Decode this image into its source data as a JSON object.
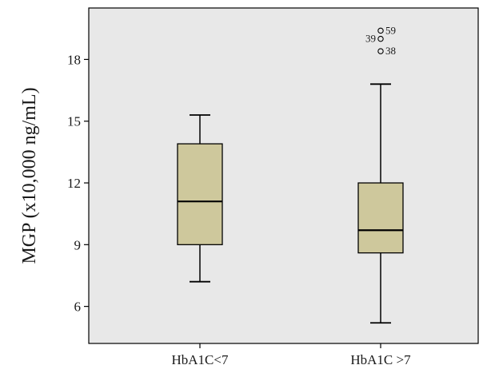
{
  "chart_data": {
    "type": "boxplot",
    "ylabel": "MGP (x10,000 ng/mL)",
    "xlabel": "",
    "ylim": [
      4.2,
      20.5
    ],
    "yticks": [
      6,
      9,
      12,
      15,
      18
    ],
    "categories": [
      "HbA1C<7",
      "HbA1C >7"
    ],
    "boxes": [
      {
        "category": "HbA1C<7",
        "whisker_low": 7.2,
        "q1": 9.0,
        "median": 11.1,
        "q3": 13.9,
        "whisker_high": 15.3,
        "outliers": []
      },
      {
        "category": "HbA1C >7",
        "whisker_low": 5.2,
        "q1": 8.6,
        "median": 9.7,
        "q3": 12.0,
        "whisker_high": 16.8,
        "outliers": [
          {
            "value": 19.4,
            "label": "59"
          },
          {
            "value": 19.0,
            "label": "39"
          },
          {
            "value": 18.4,
            "label": "38"
          }
        ]
      }
    ],
    "colors": {
      "plot_background": "#e8e8e8",
      "box_fill": "#cec89c",
      "frame": "#000000"
    },
    "grid": false
  }
}
